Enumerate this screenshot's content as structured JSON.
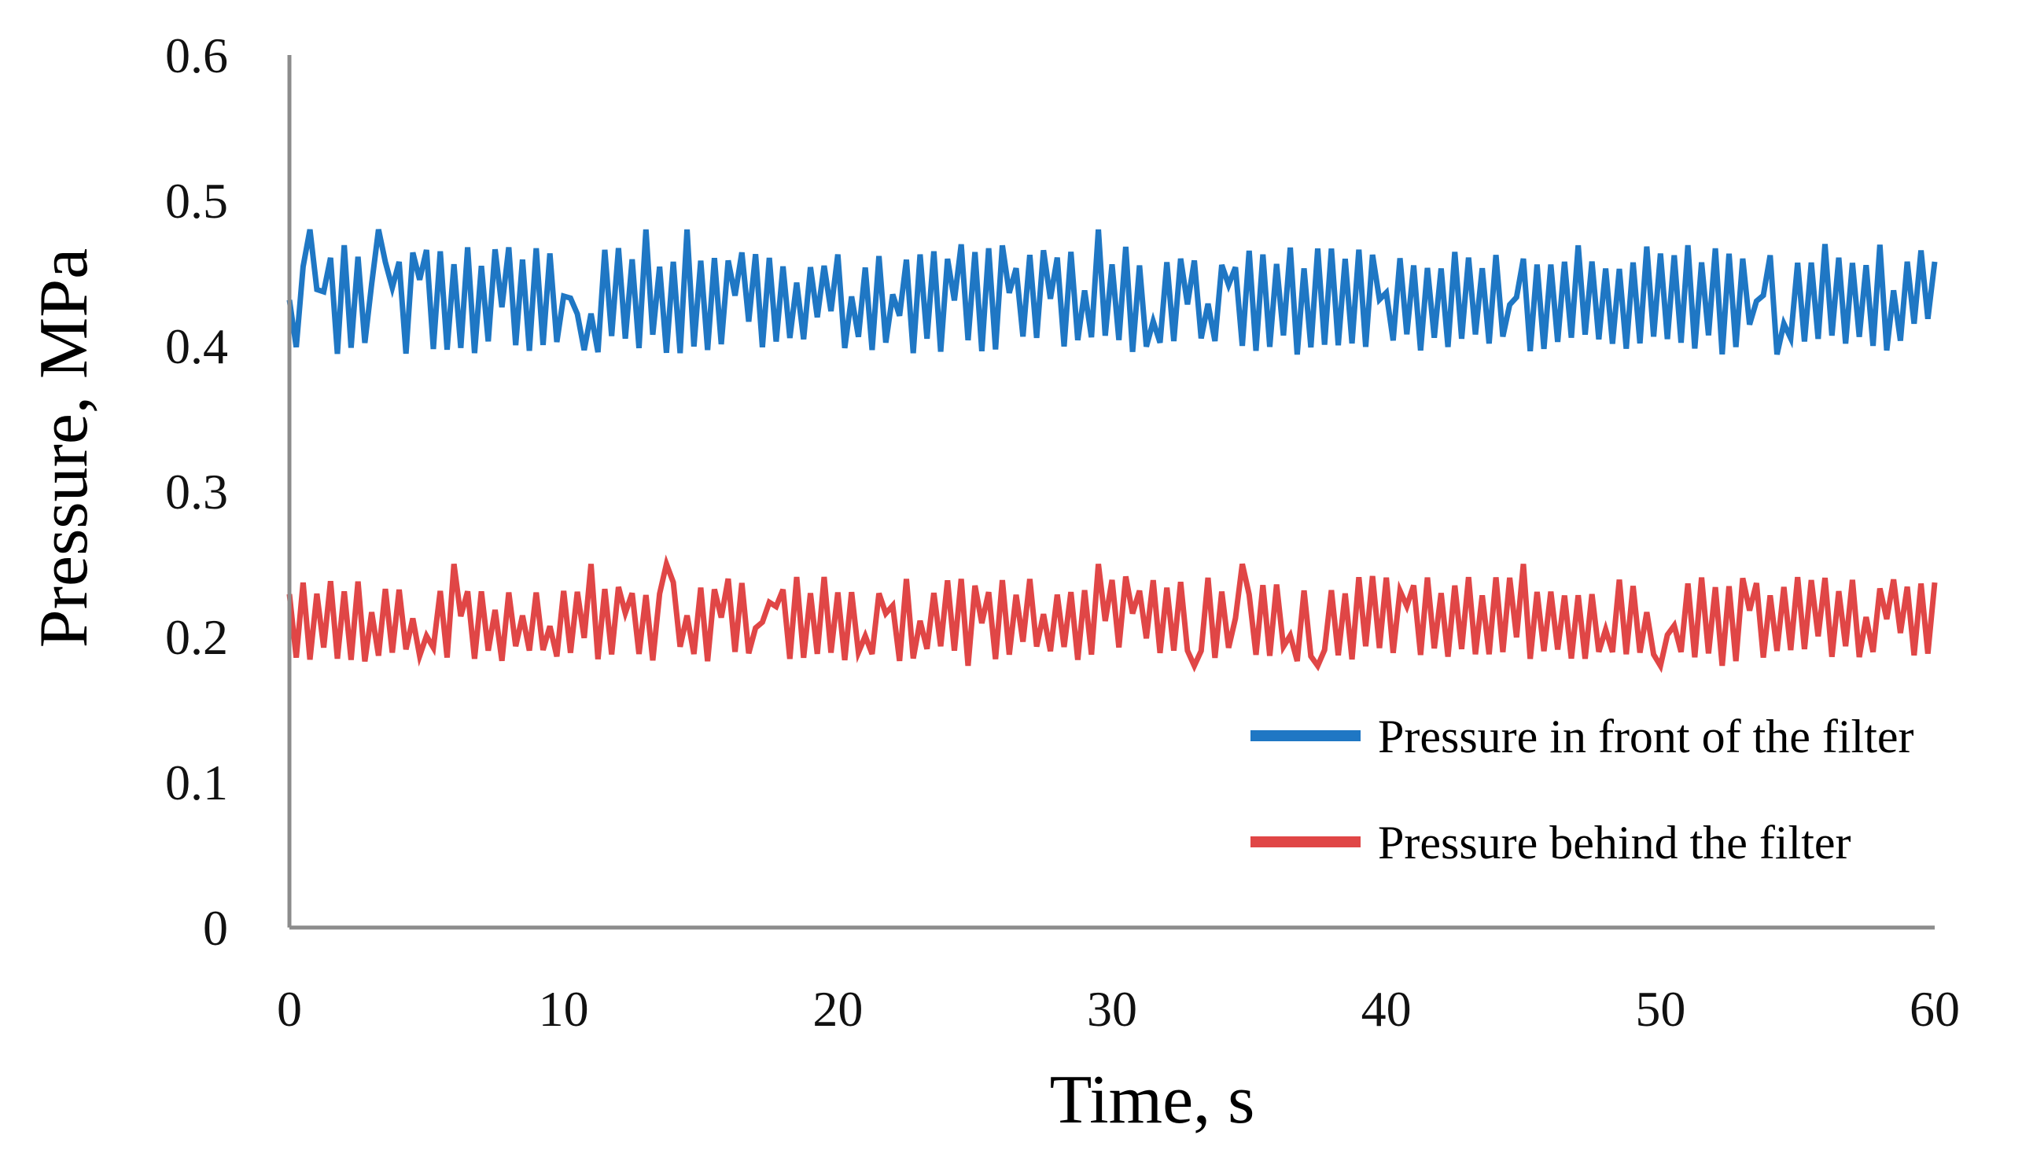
{
  "chart_data": {
    "type": "line",
    "title": "",
    "xlabel": "Time, s",
    "ylabel": "Pressure, MPa",
    "xlim": [
      0,
      60
    ],
    "ylim": [
      0,
      0.6
    ],
    "x_ticks": [
      0,
      10,
      20,
      30,
      40,
      50,
      60
    ],
    "y_ticks": [
      0,
      0.1,
      0.2,
      0.3,
      0.4,
      0.5,
      0.6
    ],
    "x_tick_labels": [
      "0",
      "10",
      "20",
      "30",
      "40",
      "50",
      "60"
    ],
    "y_tick_labels": [
      "0",
      "0.1",
      "0.2",
      "0.3",
      "0.4",
      "0.5",
      "0.6"
    ],
    "grid": false,
    "legend_position": "lower-right",
    "sample_interval_s": 0.25,
    "series": [
      {
        "name": "Pressure in front of the filter",
        "color": "#1f77c4",
        "mean": 0.43,
        "fluctuation_range": [
          0.39,
          0.48
        ],
        "spikes": [
          {
            "x": 0.8,
            "y": 0.48
          },
          {
            "x": 3.3,
            "y": 0.48
          },
          {
            "x": 13.0,
            "y": 0.48
          },
          {
            "x": 14.6,
            "y": 0.48
          },
          {
            "x": 29.6,
            "y": 0.48
          },
          {
            "x": 55.9,
            "y": 0.47
          }
        ]
      },
      {
        "name": "Pressure behind the filter",
        "color": "#e04646",
        "mean": 0.21,
        "fluctuation_range": [
          0.18,
          0.25
        ],
        "spikes": [
          {
            "x": 5.9,
            "y": 0.25
          },
          {
            "x": 11.1,
            "y": 0.25
          },
          {
            "x": 13.8,
            "y": 0.25
          },
          {
            "x": 29.5,
            "y": 0.25
          },
          {
            "x": 34.7,
            "y": 0.25
          },
          {
            "x": 45.0,
            "y": 0.25
          },
          {
            "x": 24.8,
            "y": 0.18
          },
          {
            "x": 33.0,
            "y": 0.18
          },
          {
            "x": 37.6,
            "y": 0.18
          },
          {
            "x": 49.9,
            "y": 0.18
          },
          {
            "x": 52.3,
            "y": 0.18
          }
        ]
      }
    ]
  }
}
